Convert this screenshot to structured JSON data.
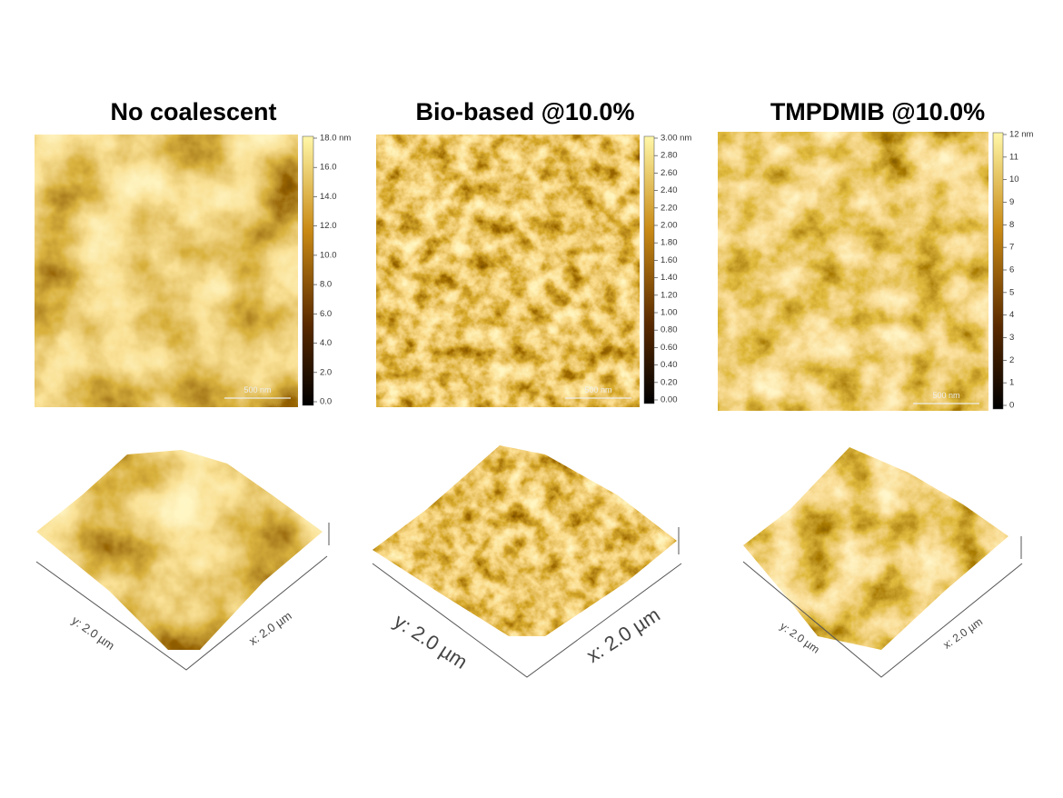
{
  "panels": [
    {
      "title": "No coalescent",
      "colorbar_ticks": [
        "18.0 nm",
        "16.0",
        "14.0",
        "12.0",
        "10.0",
        "8.0",
        "6.0",
        "4.0",
        "2.0",
        "0.0"
      ],
      "scale_bar": "500 nm",
      "y_axis_label": "y: 2.0 µm",
      "x_axis_label": "x: 2.0 µm"
    },
    {
      "title": "Bio-based @10.0%",
      "colorbar_ticks": [
        "3.00 nm",
        "2.80",
        "2.60",
        "2.40",
        "2.20",
        "2.00",
        "1.80",
        "1.60",
        "1.40",
        "1.20",
        "1.00",
        "0.80",
        "0.60",
        "0.40",
        "0.20",
        "0.00"
      ],
      "scale_bar": "500 nm",
      "y_axis_label": "y: 2.0 µm",
      "x_axis_label": "x: 2.0 µm"
    },
    {
      "title": "TMPDMIB @10.0%",
      "colorbar_ticks": [
        "12 nm",
        "11",
        "10",
        "9",
        "8",
        "7",
        "6",
        "5",
        "4",
        "3",
        "2",
        "1",
        "0"
      ],
      "scale_bar": "500 nm",
      "y_axis_label": "y: 2.0 µm",
      "x_axis_label": "x: 2.0 µm"
    }
  ]
}
